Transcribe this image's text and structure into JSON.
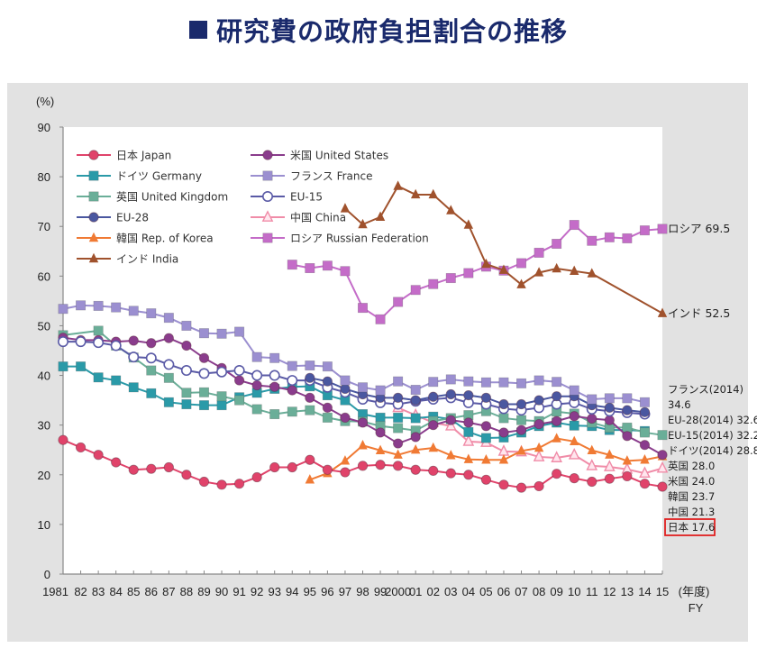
{
  "page": {
    "title": "研究費の政府負担割合の推移"
  },
  "chart_data": {
    "type": "line",
    "title": "研究費の政府負担割合の推移",
    "ylabel": "(%)",
    "xlabel": "(年度) FY",
    "ylim": [
      0,
      90
    ],
    "yticks": [
      0,
      10,
      20,
      30,
      40,
      50,
      60,
      70,
      80,
      90
    ],
    "grid": false,
    "legend_position": "top-left",
    "x": [
      1981,
      1982,
      1983,
      1984,
      1985,
      1986,
      1987,
      1988,
      1989,
      1990,
      1991,
      1992,
      1993,
      1994,
      1995,
      1996,
      1997,
      1998,
      1999,
      2000,
      2001,
      2002,
      2003,
      2004,
      2005,
      2006,
      2007,
      2008,
      2009,
      2010,
      2011,
      2012,
      2013,
      2014,
      2015
    ],
    "xtick_labels": [
      "1981",
      "82",
      "83",
      "84",
      "85",
      "86",
      "87",
      "88",
      "89",
      "90",
      "91",
      "92",
      "93",
      "94",
      "95",
      "96",
      "97",
      "98",
      "99",
      "2000",
      "01",
      "02",
      "03",
      "04",
      "05",
      "06",
      "07",
      "08",
      "09",
      "10",
      "11",
      "12",
      "13",
      "14",
      "15"
    ],
    "series": [
      {
        "key": "japan",
        "name": "日本 Japan",
        "color": "#e0436a",
        "marker": "circle",
        "values": [
          27.0,
          25.5,
          24.0,
          22.5,
          21.0,
          21.2,
          21.5,
          20.0,
          18.6,
          18.0,
          18.2,
          19.5,
          21.5,
          21.5,
          23.0,
          21.0,
          20.5,
          21.8,
          22.0,
          21.8,
          21.0,
          20.8,
          20.3,
          20.0,
          19.0,
          18.0,
          17.4,
          17.7,
          20.2,
          19.3,
          18.6,
          19.2,
          19.7,
          18.2,
          17.6
        ]
      },
      {
        "key": "us",
        "name": "米国 United States",
        "color": "#8a3c8c",
        "marker": "circle",
        "values": [
          47.6,
          47.1,
          47.1,
          46.8,
          47.0,
          46.5,
          47.5,
          46.0,
          43.5,
          41.5,
          39.0,
          38.0,
          37.7,
          37.0,
          35.5,
          33.5,
          31.5,
          30.5,
          28.5,
          26.3,
          27.6,
          30.0,
          31.0,
          30.5,
          29.8,
          28.5,
          29.0,
          30.2,
          30.8,
          31.8,
          31.3,
          31.0,
          27.8,
          26.0,
          24.0
        ]
      },
      {
        "key": "germany",
        "name": "ドイツ Germany",
        "color": "#2a9aa8",
        "marker": "square",
        "values": [
          41.8,
          41.8,
          39.6,
          39.0,
          37.6,
          36.4,
          34.6,
          34.2,
          34.0,
          34.0,
          35.6,
          36.5,
          37.3,
          37.7,
          37.8,
          36.0,
          35.0,
          32.2,
          31.5,
          31.5,
          31.4,
          31.7,
          31.2,
          28.6,
          27.4,
          27.5,
          28.5,
          29.8,
          30.5,
          29.9,
          29.8,
          29.0,
          29.0,
          28.8,
          null
        ]
      },
      {
        "key": "france",
        "name": "フランス France",
        "color": "#9b8fd0",
        "marker": "square",
        "values": [
          53.4,
          54.1,
          54.0,
          53.7,
          53.0,
          52.5,
          51.6,
          50.0,
          48.5,
          48.4,
          48.8,
          43.7,
          43.5,
          41.9,
          42.0,
          41.8,
          39.0,
          37.6,
          37.0,
          38.8,
          37.1,
          38.7,
          39.2,
          38.8,
          38.6,
          38.6,
          38.4,
          39.0,
          38.7,
          37.0,
          35.2,
          35.4,
          35.4,
          34.6,
          null
        ]
      },
      {
        "key": "uk",
        "name": "英国 United Kingdom",
        "color": "#6aae98",
        "marker": "square",
        "values": [
          48.1,
          null,
          49.0,
          46.0,
          43.6,
          41.0,
          39.5,
          36.5,
          36.6,
          35.8,
          35.0,
          33.2,
          32.2,
          32.7,
          33.0,
          31.5,
          30.8,
          30.7,
          29.8,
          29.4,
          28.9,
          30.8,
          31.4,
          32.0,
          32.8,
          31.4,
          31.0,
          30.8,
          32.7,
          32.3,
          30.5,
          29.5,
          29.5,
          28.5,
          28.0
        ]
      },
      {
        "key": "eu15",
        "name": "EU-15",
        "color": "#5a5aa6",
        "marker": "circle-open",
        "values": [
          46.8,
          46.8,
          46.6,
          46.0,
          43.7,
          43.5,
          42.2,
          41.0,
          40.4,
          40.7,
          41.0,
          40.0,
          40.0,
          39.0,
          39.0,
          37.6,
          36.6,
          35.2,
          34.5,
          34.2,
          34.8,
          35.2,
          35.5,
          34.5,
          34.2,
          33.3,
          33.0,
          33.5,
          34.2,
          34.5,
          33.2,
          32.8,
          32.5,
          32.2,
          null
        ]
      },
      {
        "key": "eu28",
        "name": "EU-28",
        "color": "#4a57a0",
        "marker": "circle",
        "values": [
          null,
          null,
          null,
          null,
          null,
          null,
          null,
          null,
          null,
          null,
          null,
          null,
          null,
          null,
          39.5,
          38.8,
          37.3,
          36.2,
          35.5,
          35.5,
          35.0,
          35.7,
          36.2,
          36.0,
          35.5,
          34.2,
          34.2,
          35.0,
          35.8,
          35.8,
          34.0,
          33.5,
          33.0,
          32.6,
          null
        ]
      },
      {
        "key": "china",
        "name": "中国 China",
        "color": "#f08ca8",
        "marker": "triangle-open",
        "values": [
          null,
          null,
          null,
          null,
          null,
          null,
          null,
          null,
          null,
          null,
          null,
          null,
          null,
          null,
          null,
          null,
          null,
          null,
          null,
          33.5,
          32.0,
          30.5,
          29.8,
          26.7,
          26.5,
          24.7,
          24.6,
          23.6,
          23.4,
          24.0,
          21.8,
          21.6,
          21.1,
          20.3,
          21.3
        ]
      },
      {
        "key": "korea",
        "name": "韓国 Rep. of Korea",
        "color": "#f07a34",
        "marker": "triangle",
        "values": [
          null,
          null,
          null,
          null,
          null,
          null,
          null,
          null,
          null,
          null,
          null,
          null,
          null,
          null,
          19.0,
          20.3,
          22.8,
          25.9,
          24.9,
          24.0,
          25.0,
          25.4,
          23.9,
          23.1,
          23.0,
          23.0,
          24.8,
          25.4,
          27.3,
          26.7,
          24.9,
          24.0,
          22.8,
          23.0,
          23.7
        ]
      },
      {
        "key": "india",
        "name": "インド India",
        "color": "#a0522d",
        "marker": "triangle",
        "values": [
          null,
          null,
          null,
          null,
          null,
          null,
          null,
          null,
          null,
          null,
          null,
          null,
          null,
          null,
          null,
          null,
          73.6,
          70.4,
          71.9,
          78.1,
          76.4,
          76.4,
          73.2,
          70.3,
          62.4,
          61.2,
          58.3,
          60.7,
          61.5,
          61.0,
          60.5,
          null,
          null,
          null,
          52.5
        ]
      },
      {
        "key": "russia",
        "name": "ロシア Russian Federation",
        "color": "#c46cc8",
        "marker": "square",
        "values": [
          null,
          null,
          null,
          null,
          null,
          null,
          null,
          null,
          null,
          null,
          null,
          null,
          null,
          62.3,
          61.6,
          62.1,
          61.0,
          53.6,
          51.3,
          54.8,
          57.2,
          58.4,
          59.6,
          60.6,
          61.9,
          61.1,
          62.6,
          64.7,
          66.5,
          70.3,
          67.1,
          67.8,
          67.6,
          69.2,
          69.5
        ]
      }
    ],
    "end_labels": [
      {
        "text": "ロシア 69.5",
        "series": "russia"
      },
      {
        "text": "インド 52.5",
        "series": "india"
      },
      {
        "text": "フランス(2014)",
        "series": "france"
      },
      {
        "text": "34.6",
        "series": "france"
      },
      {
        "text": "EU-28(2014) 32.6",
        "series": "eu28"
      },
      {
        "text": "EU-15(2014) 32.2",
        "series": "eu15"
      },
      {
        "text": "ドイツ(2014) 28.8",
        "series": "germany"
      },
      {
        "text": "英国 28.0",
        "series": "uk"
      },
      {
        "text": "米国 24.0",
        "series": "us"
      },
      {
        "text": "韓国 23.7",
        "series": "korea"
      },
      {
        "text": "中国 21.3",
        "series": "china"
      },
      {
        "text": "日本 17.6",
        "series": "japan",
        "highlighted": true
      }
    ],
    "highlight_color": "#e02020",
    "x_unit_labels": [
      "(年度)",
      "FY"
    ]
  }
}
